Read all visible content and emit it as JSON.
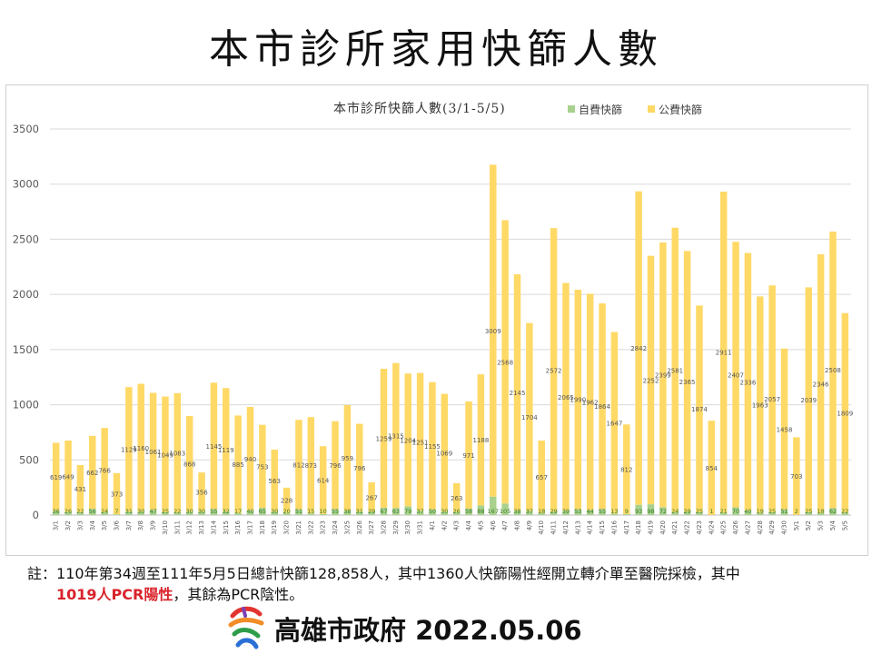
{
  "page": {
    "title": "本市診所家用快篩人數"
  },
  "note": {
    "prefix": "註：",
    "line1": "110年第34週至111年5月5日總計快篩128,858人，其中1360人快篩陽性經開立轉介單至醫院採檢，其中",
    "highlight": "1019人PCR陽性",
    "line2_rest": "，其餘為PCR陰性。"
  },
  "footer": {
    "org": "高雄市政府",
    "date": "2022.05.06"
  },
  "colors": {
    "self_pay": "#a9d18e",
    "public": "#ffd966",
    "note_highlight": "#d9232b",
    "grid": "#d9d9d9"
  },
  "chart_data": {
    "type": "bar",
    "stacked": true,
    "title": "本市診所快篩人數(3/1-5/5)",
    "xlabel": "",
    "ylabel": "",
    "ylim": [
      0,
      3500
    ],
    "yticks": [
      0,
      500,
      1000,
      1500,
      2000,
      2500,
      3000,
      3500
    ],
    "grid": true,
    "legend_position": "top",
    "categories": [
      "3/1",
      "3/2",
      "3/3",
      "3/4",
      "3/5",
      "3/6",
      "3/7",
      "3/8",
      "3/9",
      "3/10",
      "3/11",
      "3/12",
      "3/13",
      "3/14",
      "3/15",
      "3/16",
      "3/17",
      "3/18",
      "3/19",
      "3/20",
      "3/21",
      "3/22",
      "3/23",
      "3/24",
      "3/25",
      "3/26",
      "3/27",
      "3/28",
      "3/29",
      "3/30",
      "3/31",
      "4/1",
      "4/2",
      "4/3",
      "4/4",
      "4/5",
      "4/6",
      "4/7",
      "4/8",
      "4/9",
      "4/10",
      "4/11",
      "4/12",
      "4/13",
      "4/14",
      "4/15",
      "4/16",
      "4/17",
      "4/18",
      "4/19",
      "4/20",
      "4/21",
      "4/22",
      "4/23",
      "4/24",
      "4/25",
      "4/26",
      "4/27",
      "4/28",
      "4/29",
      "4/30",
      "5/1",
      "5/2",
      "5/3",
      "5/4",
      "5/5"
    ],
    "series": [
      {
        "name": "自費快篩",
        "color": "#a9d18e",
        "values": [
          36,
          26,
          22,
          56,
          24,
          7,
          31,
          30,
          47,
          25,
          22,
          30,
          30,
          55,
          32,
          17,
          40,
          65,
          30,
          20,
          51,
          15,
          10,
          55,
          38,
          31,
          29,
          67,
          63,
          79,
          37,
          50,
          30,
          26,
          58,
          88,
          167,
          105,
          38,
          37,
          18,
          29,
          39,
          53,
          44,
          55,
          13,
          9,
          93,
          98,
          72,
          24,
          29,
          25,
          1,
          21,
          70,
          40,
          19,
          25,
          51,
          2,
          25,
          18,
          62,
          22
        ]
      },
      {
        "name": "公費快篩",
        "color": "#ffd966",
        "values": [
          619,
          649,
          431,
          662,
          766,
          373,
          1129,
          1160,
          1061,
          1049,
          1083,
          868,
          356,
          1145,
          1119,
          885,
          940,
          753,
          563,
          228,
          812,
          873,
          614,
          796,
          959,
          796,
          267,
          1259,
          1315,
          1204,
          1251,
          1155,
          1069,
          263,
          971,
          1188,
          3009,
          2568,
          2145,
          1704,
          657,
          2572,
          2065,
          1990,
          1962,
          1864,
          1647,
          812,
          2842,
          2252,
          2399,
          2581,
          2365,
          1874,
          854,
          2911,
          2407,
          2336,
          1963,
          2057,
          1458,
          703,
          2039,
          2346,
          2508,
          1809
        ]
      }
    ]
  }
}
